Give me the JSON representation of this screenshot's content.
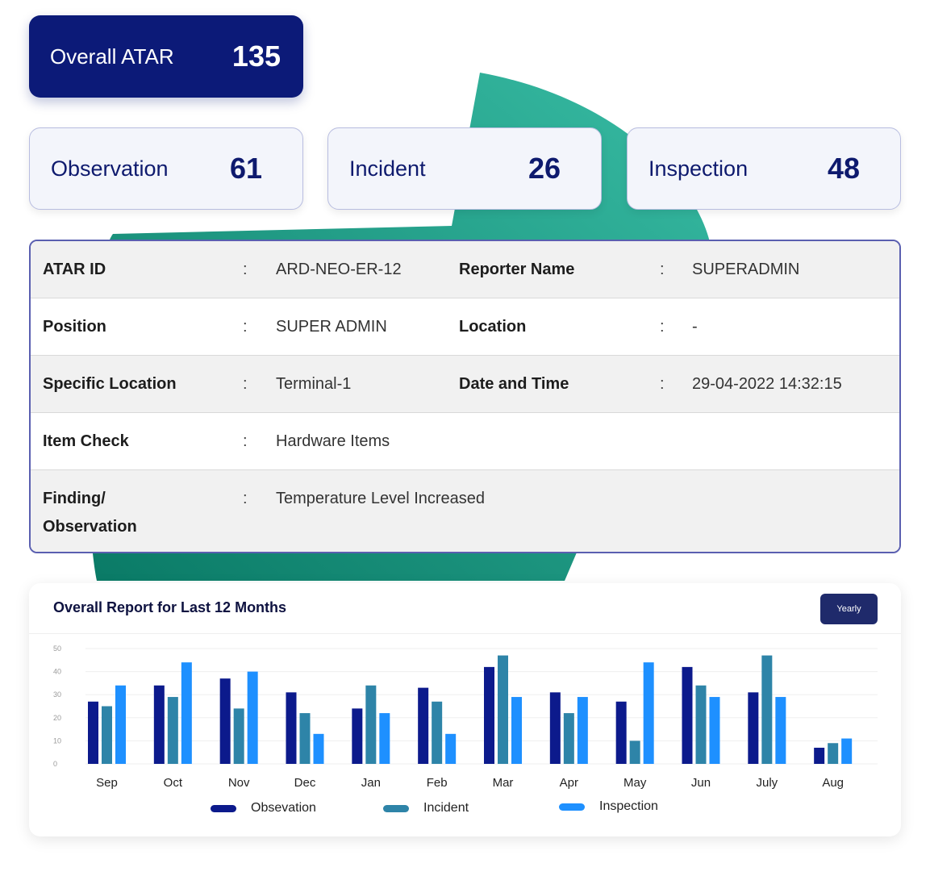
{
  "overall": {
    "label": "Overall ATAR",
    "value": "135"
  },
  "stats": [
    {
      "label": "Observation",
      "value": "61"
    },
    {
      "label": "Incident",
      "value": "26"
    },
    {
      "label": "Inspection",
      "value": "48"
    }
  ],
  "details": {
    "row1": {
      "k1": "ATAR ID",
      "s1": ":",
      "v1": "ARD-NEO-ER-12",
      "k2": "Reporter Name",
      "s2": ":",
      "v2": "SUPERADMIN"
    },
    "row2": {
      "k1": "Position",
      "s1": ":",
      "v1": "SUPER ADMIN",
      "k2": "Location",
      "s2": ":",
      "v2": "-"
    },
    "row3": {
      "k1": "Specific Location",
      "s1": ":",
      "v1": "Terminal-1",
      "k2": "Date and Time",
      "s2": ":",
      "v2": "29-04-2022 14:32:15"
    },
    "row4": {
      "k1": "Item Check",
      "s1": ":",
      "v1": "Hardware Items"
    },
    "row5": {
      "k1a": "Finding/",
      "k1b": "Observation",
      "s1": ":",
      "v1": "Temperature Level Increased"
    }
  },
  "report": {
    "title": "Overall Report for Last 12 Months",
    "yearly_label": "Yearly"
  },
  "colors": {
    "observation": "#0c1a8c",
    "incident": "#2e84a8",
    "inspection": "#1e90ff",
    "accent_green": "#1fa38a"
  },
  "chart_data": {
    "type": "bar",
    "categories": [
      "Sep",
      "Oct",
      "Nov",
      "Dec",
      "Jan",
      "Feb",
      "Mar",
      "Apr",
      "May",
      "Jun",
      "July",
      "Aug"
    ],
    "ylim": [
      0,
      50
    ],
    "yticks": [
      "0",
      "10",
      "20",
      "30",
      "40",
      "50"
    ],
    "grid": true,
    "legend_position": "bottom",
    "series": [
      {
        "name": "Obsevation",
        "values": [
          27,
          34,
          37,
          31,
          24,
          33,
          42,
          31,
          27,
          42,
          31,
          7
        ]
      },
      {
        "name": "Incident",
        "values": [
          25,
          29,
          24,
          22,
          34,
          27,
          47,
          22,
          10,
          34,
          47,
          9
        ]
      },
      {
        "name": "Inspection",
        "values": [
          34,
          44,
          40,
          13,
          22,
          13,
          29,
          29,
          44,
          29,
          29,
          11
        ]
      }
    ]
  }
}
